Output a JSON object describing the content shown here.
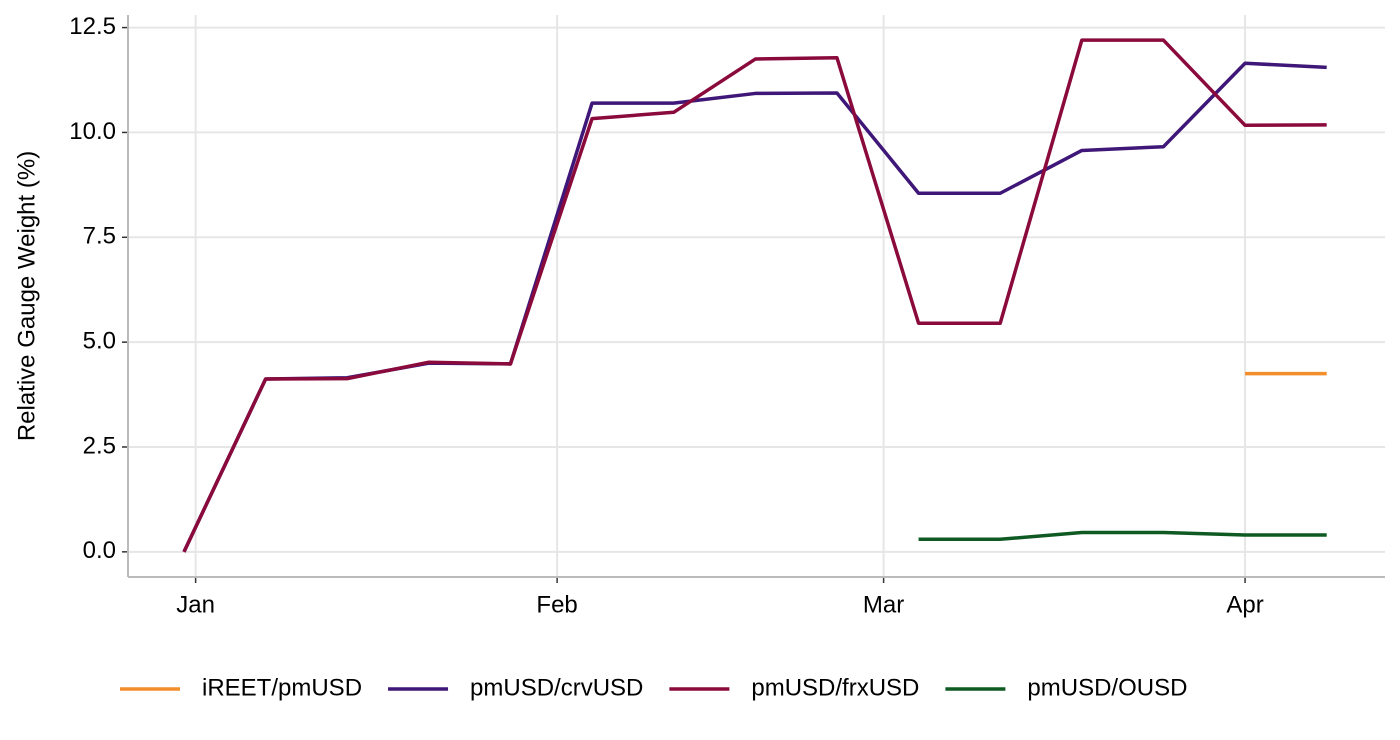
{
  "chart_data": {
    "type": "line",
    "y_label": "Relative Gauge Weight (%)",
    "x": [
      -1,
      6,
      13,
      20,
      27,
      34,
      41,
      48,
      55,
      62,
      69,
      76,
      83,
      90,
      97
    ],
    "xlim": [
      -5.8,
      102
    ],
    "xticks": [
      {
        "value": 0,
        "label": "Jan"
      },
      {
        "value": 31,
        "label": "Feb"
      },
      {
        "value": 59,
        "label": "Mar"
      },
      {
        "value": 90,
        "label": "Apr"
      }
    ],
    "ylim": [
      -0.6,
      12.8
    ],
    "yticks": [
      {
        "value": 0,
        "label": "0.0"
      },
      2.5,
      {
        "value": 5,
        "label": "5.0"
      },
      7.5,
      {
        "value": 10,
        "label": "10.0"
      },
      12.5
    ],
    "grid": true,
    "legend": "bottom",
    "series": [
      {
        "name": "iREET/pmUSD",
        "color": "#f28e2b",
        "values": [
          null,
          null,
          null,
          null,
          null,
          null,
          null,
          null,
          null,
          null,
          null,
          null,
          null,
          4.25,
          4.25
        ]
      },
      {
        "name": "pmUSD/crvUSD",
        "color": "#3f1778",
        "values": [
          0,
          4.12,
          4.15,
          4.5,
          4.48,
          10.7,
          10.7,
          10.93,
          10.94,
          8.55,
          8.55,
          9.57,
          9.66,
          11.65,
          11.55
        ]
      },
      {
        "name": "pmUSD/frxUSD",
        "color": "#8a0a3c",
        "values": [
          0,
          4.12,
          4.13,
          4.52,
          4.48,
          10.33,
          10.48,
          11.75,
          11.78,
          5.45,
          5.45,
          12.2,
          12.2,
          10.17,
          10.18
        ]
      },
      {
        "name": "pmUSD/OUSD",
        "color": "#0f5a23",
        "values": [
          null,
          null,
          null,
          null,
          null,
          null,
          null,
          null,
          null,
          0.3,
          0.3,
          0.46,
          0.46,
          0.4,
          0.4
        ]
      }
    ]
  }
}
